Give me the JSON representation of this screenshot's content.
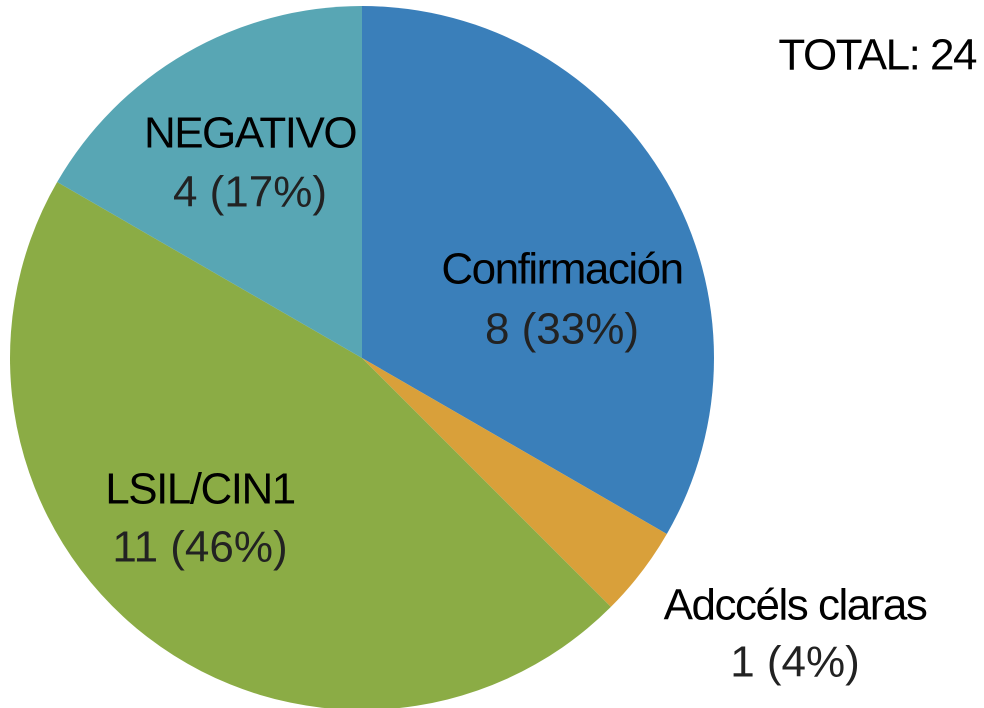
{
  "chart_data": {
    "type": "pie",
    "annotation": "TOTAL: 24",
    "categories": [
      "Confirmación",
      "Adccéls claras",
      "LSIL/CIN1",
      "NEGATIVO"
    ],
    "values": [
      8,
      1,
      11,
      4
    ],
    "value_labels": [
      "8 (33%)",
      "1 (4%)",
      "11 (46%)",
      "4 (17%)"
    ],
    "colors": [
      "#3a7fba",
      "#d9a03a",
      "#8bac45",
      "#58a6b4"
    ]
  }
}
